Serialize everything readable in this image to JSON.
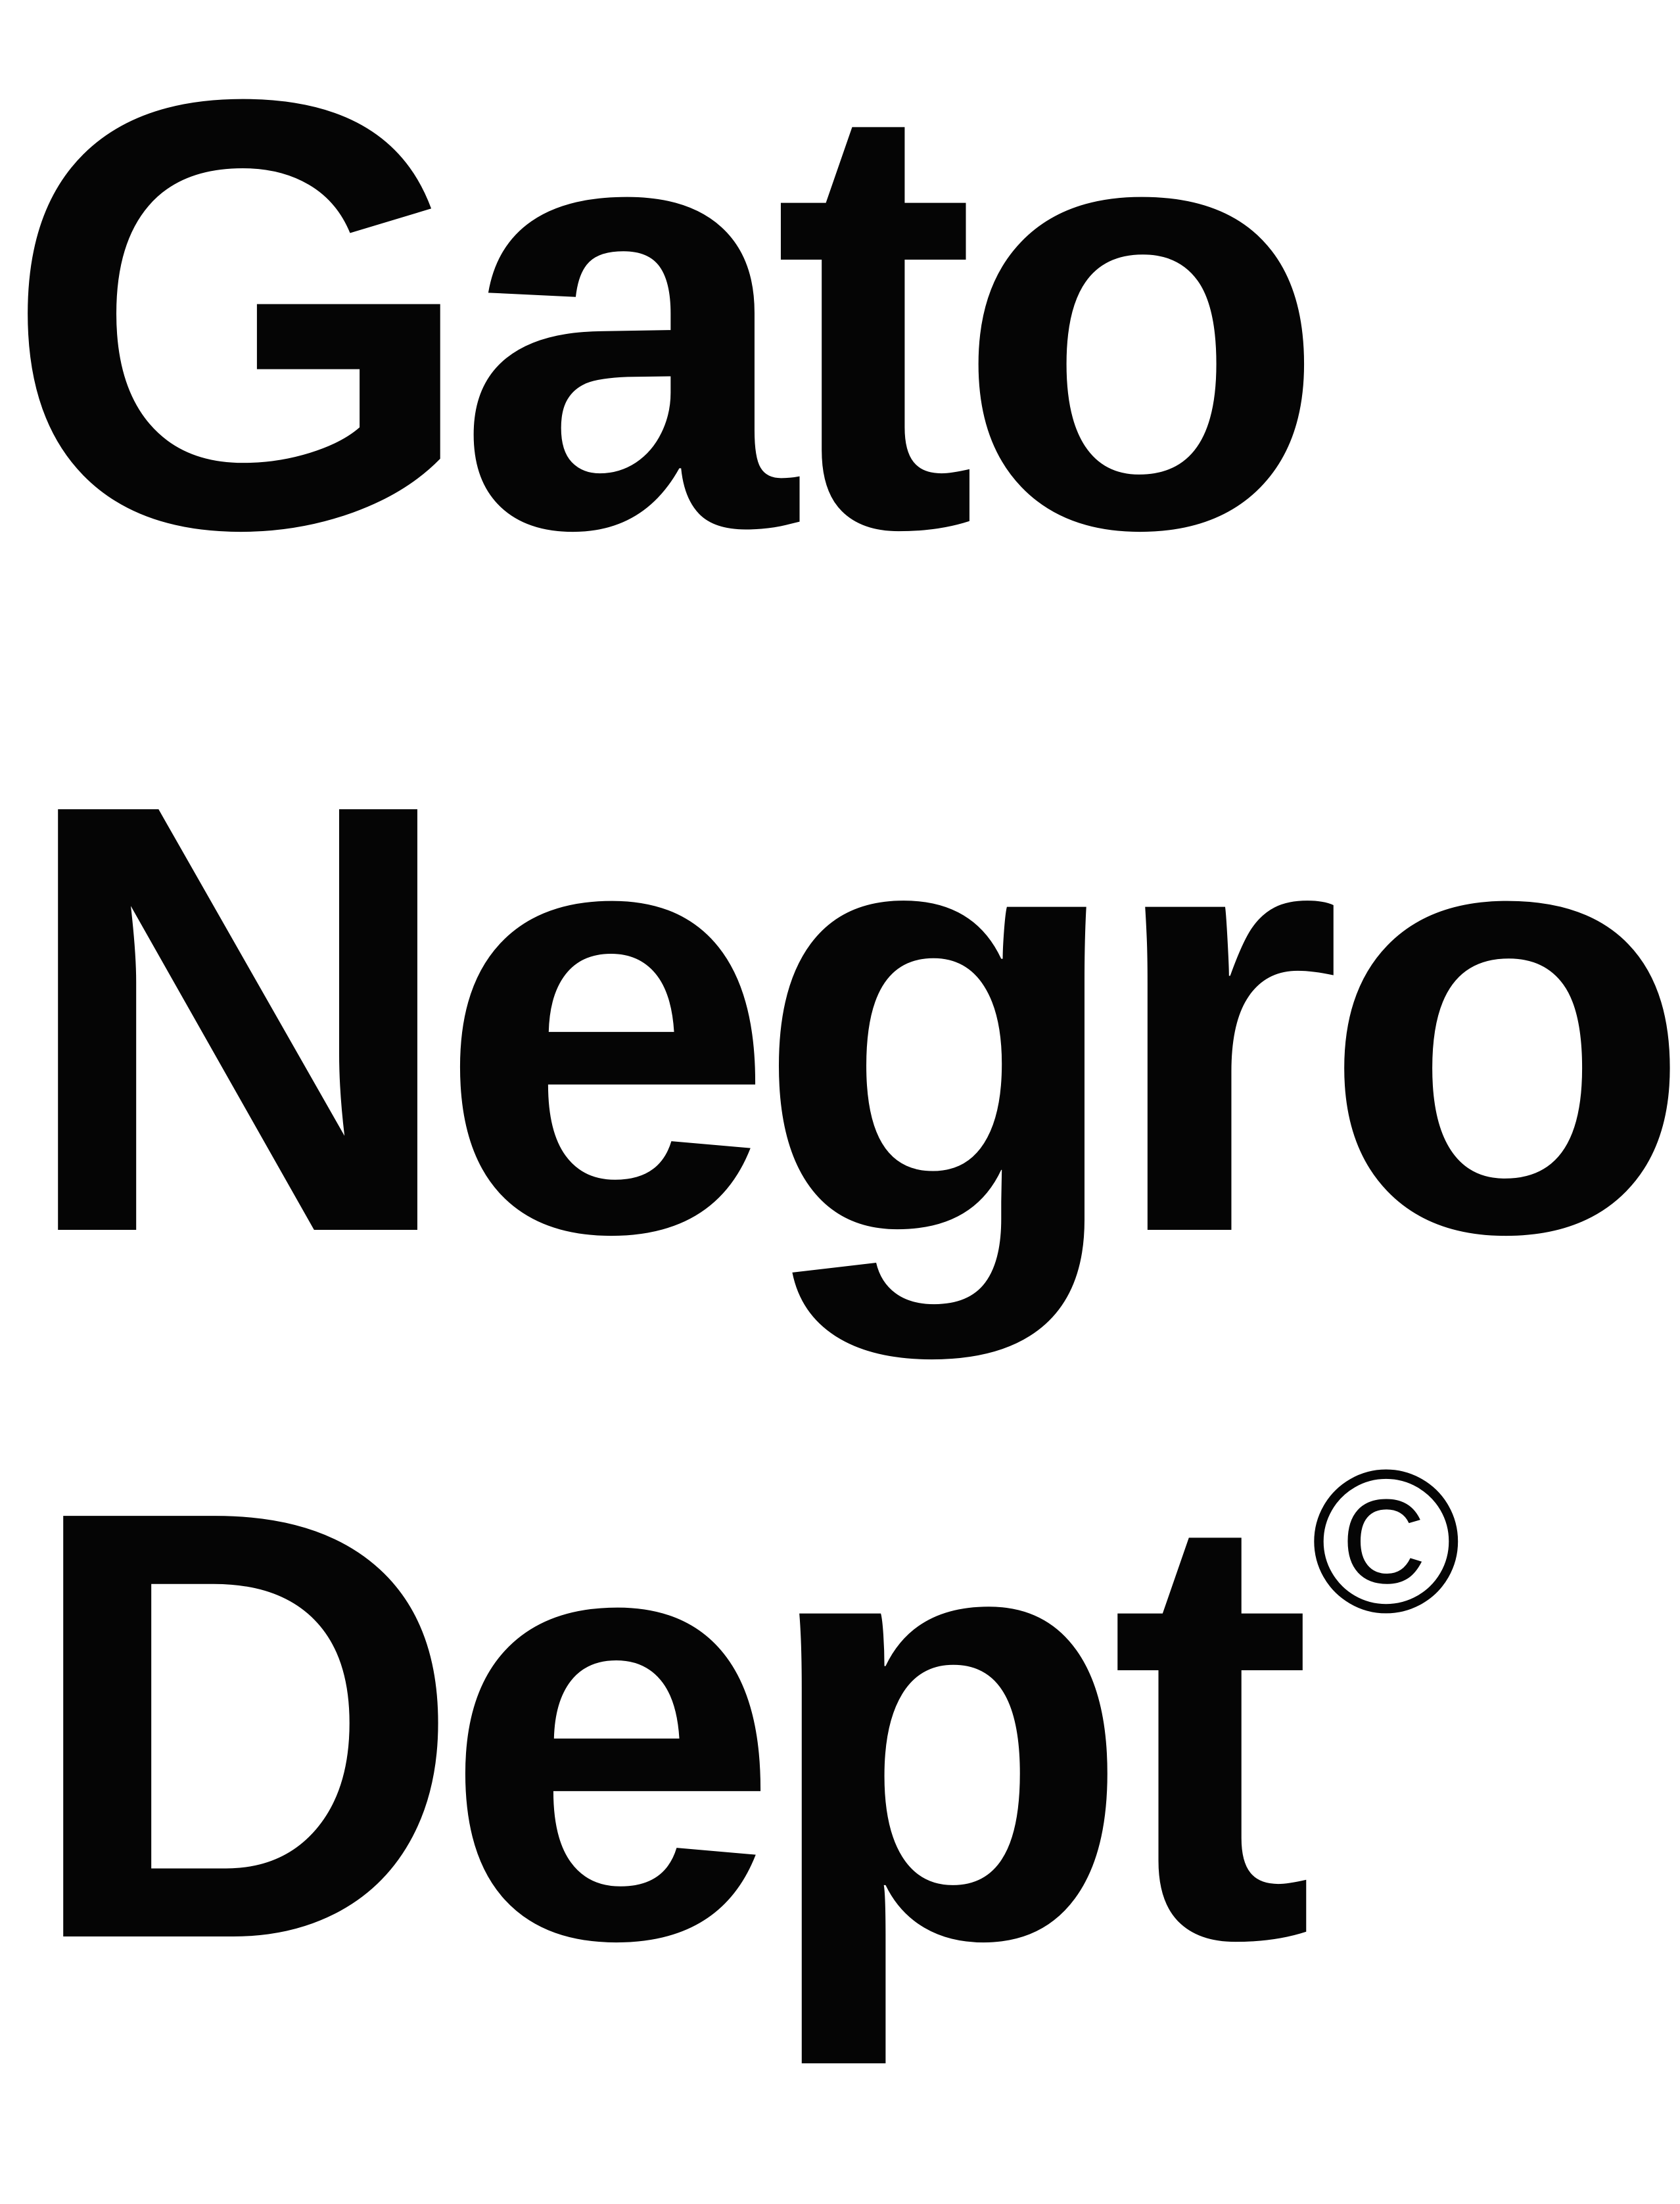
{
  "wordmark": {
    "line_1": "Gato",
    "line_2": "Negro",
    "line_3": "Dept",
    "copyright_symbol": "©"
  },
  "colors": {
    "background": "#ffffff",
    "text": "#050505"
  }
}
